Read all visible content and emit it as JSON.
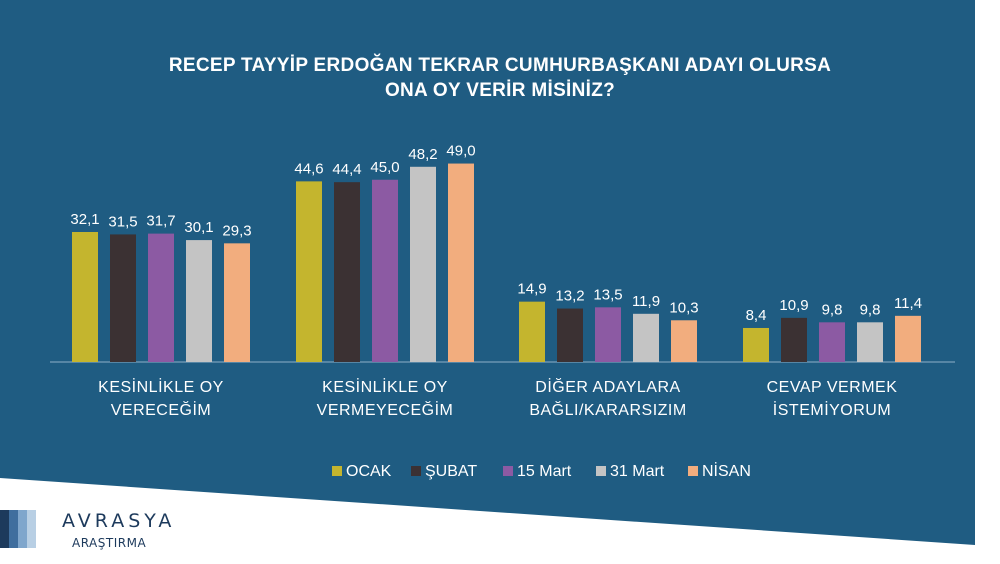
{
  "colors": {
    "background": "#1f5c82",
    "ocak": "#c4b52e",
    "subat": "#3b3133",
    "mart15": "#8c5aa3",
    "mart31": "#c4c4c4",
    "nisan": "#f2ad7e",
    "text": "#ffffff",
    "logo_text": "#1d3a5c"
  },
  "title_lines": [
    "RECEP TAYYİP ERDOĞAN TEKRAR CUMHURBAŞKANI ADAYI OLURSA",
    "ONA OY VERİR MİSİNİZ?"
  ],
  "chart_data": {
    "type": "bar",
    "title": "RECEP TAYYİP ERDOĞAN TEKRAR CUMHURBAŞKANI ADAYI OLURSA ONA OY VERİR MİSİNİZ?",
    "categories": [
      [
        "KESİNLİKLE OY",
        "VERECEĞİM"
      ],
      [
        "KESİNLİKLE OY",
        "VERMEYECEĞİM"
      ],
      [
        "DİĞER ADAYLARA",
        "BAĞLI/KARARSIZIM"
      ],
      [
        "CEVAP VERMEK",
        "İSTEMİYORUM"
      ]
    ],
    "series": [
      {
        "name": "OCAK",
        "color": "#c4b52e",
        "values": [
          32.1,
          44.6,
          14.9,
          8.4
        ],
        "labels": [
          "32,1",
          "44,6",
          "14,9",
          "8,4"
        ]
      },
      {
        "name": "ŞUBAT",
        "color": "#3b3133",
        "values": [
          31.5,
          44.4,
          13.2,
          10.9
        ],
        "labels": [
          "31,5",
          "44,4",
          "13,2",
          "10,9"
        ]
      },
      {
        "name": "15 Mart",
        "color": "#8c5aa3",
        "values": [
          31.7,
          45.0,
          13.5,
          9.8
        ],
        "labels": [
          "31,7",
          "45,0",
          "13,5",
          "9,8"
        ]
      },
      {
        "name": "31 Mart",
        "color": "#c4c4c4",
        "values": [
          30.1,
          48.2,
          11.9,
          9.8
        ],
        "labels": [
          "30,1",
          "48,2",
          "11,9",
          "9,8"
        ]
      },
      {
        "name": "NİSAN",
        "color": "#f2ad7e",
        "values": [
          29.3,
          49.0,
          10.3,
          11.4
        ],
        "labels": [
          "29,3",
          "49,0",
          "10,3",
          "11,4"
        ]
      }
    ],
    "ylim": [
      0,
      60
    ],
    "legend": "bottom",
    "grid": false
  },
  "logo": {
    "brand": "AVRASYA",
    "sub": "ARAŞTIRMA",
    "stripe_colors": [
      "#1d3a5c",
      "#3f6e9e",
      "#7fa6cc",
      "#b8cfe4"
    ]
  }
}
